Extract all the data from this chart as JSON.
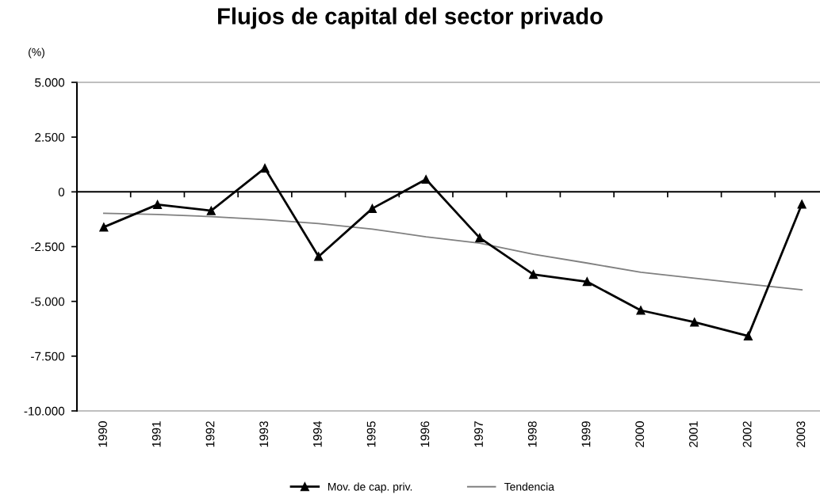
{
  "chart_data": {
    "type": "line",
    "title": "Flujos de capital del sector privado",
    "ylabel": "(%)",
    "categories": [
      "1990",
      "1991",
      "1992",
      "1993",
      "1994",
      "1995",
      "1996",
      "1997",
      "1998",
      "1999",
      "2000",
      "2001",
      "2002",
      "2003"
    ],
    "series": [
      {
        "name": "Mov. de cap. priv.",
        "color": "#000000",
        "marker": "triangle",
        "values": [
          -1610,
          -580,
          -860,
          1080,
          -2950,
          -760,
          570,
          -2100,
          -3770,
          -4100,
          -5410,
          -5950,
          -6580,
          -560
        ]
      },
      {
        "name": "Tendencia",
        "color": "#808080",
        "marker": "none",
        "values": [
          -980,
          -1030,
          -1130,
          -1270,
          -1450,
          -1700,
          -2050,
          -2340,
          -2850,
          -3250,
          -3670,
          -3940,
          -4210,
          -4470
        ]
      }
    ],
    "ylim": [
      -10000,
      5000
    ],
    "yticks": [
      {
        "value": 5000,
        "label": "5.000"
      },
      {
        "value": 2500,
        "label": "2.500"
      },
      0,
      {
        "value": -2500,
        "label": "-2.500"
      },
      {
        "value": -5000,
        "label": "-5.000"
      },
      {
        "value": -7500,
        "label": "-7.500"
      },
      {
        "value": -10000,
        "label": "-10.000"
      }
    ],
    "legend": "bottom"
  }
}
